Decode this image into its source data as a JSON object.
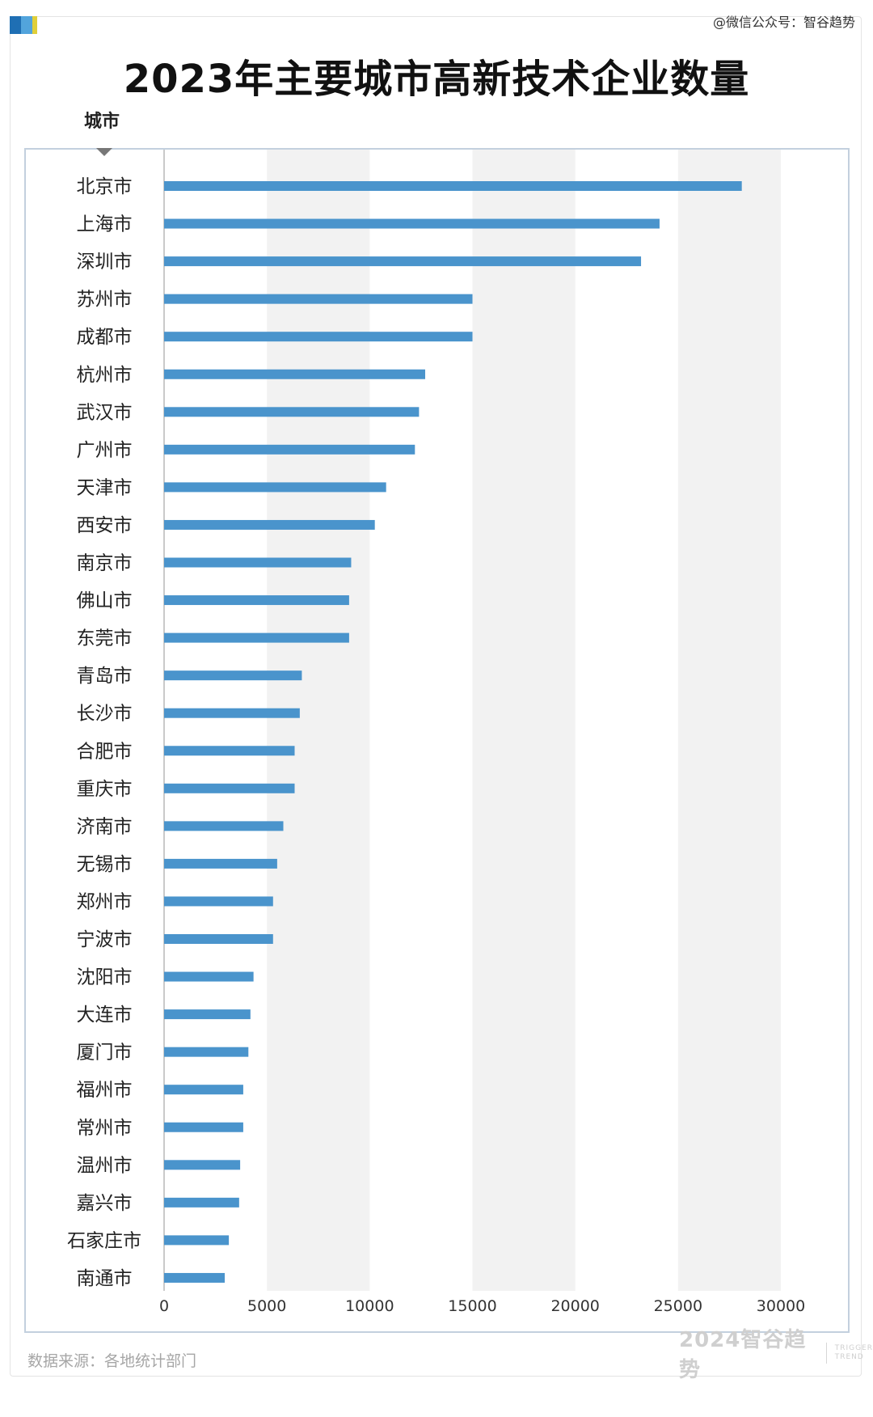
{
  "header": {
    "title": "2023年主要城市高新技术企业数量",
    "watermark": "@微信公众号：智谷趋势",
    "category_axis_title": "城市"
  },
  "footer": {
    "source": "数据来源：各地统计部门",
    "brand_main": "2024智谷趋势",
    "brand_sub_1": "TRIGGER",
    "brand_sub_2": "TREND"
  },
  "colors": {
    "bar": "#4a94cc",
    "band": "#f2f2f2",
    "frame": "#c3d0de",
    "logo": [
      "#1f6fb4",
      "#52a4dc",
      "#e0cf3a"
    ]
  },
  "chart_data": {
    "type": "bar",
    "orientation": "horizontal",
    "title": "2023年主要城市高新技术企业数量",
    "ylabel": "城市",
    "xlabel": "",
    "xlim": [
      0,
      30000
    ],
    "xticks": [
      0,
      5000,
      10000,
      15000,
      20000,
      25000,
      30000
    ],
    "grid": "alternating vertical bands",
    "categories": [
      "北京市",
      "上海市",
      "深圳市",
      "苏州市",
      "成都市",
      "杭州市",
      "武汉市",
      "广州市",
      "天津市",
      "西安市",
      "南京市",
      "佛山市",
      "东莞市",
      "青岛市",
      "长沙市",
      "合肥市",
      "重庆市",
      "济南市",
      "无锡市",
      "郑州市",
      "宁波市",
      "沈阳市",
      "大连市",
      "厦门市",
      "福州市",
      "常州市",
      "温州市",
      "嘉兴市",
      "石家庄市",
      "南通市"
    ],
    "values": [
      28100,
      24100,
      23200,
      15000,
      15000,
      12700,
      12400,
      12200,
      10800,
      10250,
      9100,
      9000,
      9000,
      6700,
      6600,
      6350,
      6350,
      5800,
      5500,
      5300,
      5300,
      4350,
      4200,
      4100,
      3850,
      3850,
      3700,
      3650,
      3150,
      2950
    ]
  }
}
